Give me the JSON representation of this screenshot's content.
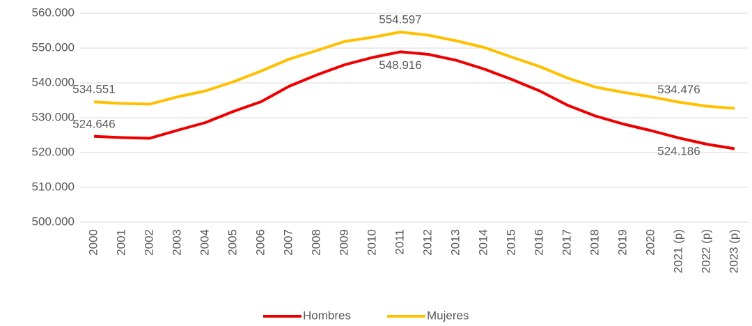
{
  "chart_data": {
    "type": "line",
    "categories": [
      "2000",
      "2001",
      "2002",
      "2003",
      "2004",
      "2005",
      "2006",
      "2007",
      "2008",
      "2009",
      "2010",
      "2011",
      "2012",
      "2013",
      "2014",
      "2015",
      "2016",
      "2017",
      "2018",
      "2019",
      "2020",
      "2021 (p)",
      "2022 (p)",
      "2023 (p)"
    ],
    "series": [
      {
        "name": "Hombres",
        "color": "#ee0000",
        "values": [
          524646,
          524300,
          524100,
          526400,
          528600,
          531800,
          534600,
          539000,
          542300,
          545200,
          547300,
          548916,
          548200,
          546500,
          544000,
          541000,
          537700,
          533600,
          530500,
          528200,
          526300,
          524186,
          522400,
          521100
        ],
        "value_labels": [
          "524.646",
          null,
          null,
          null,
          null,
          null,
          null,
          null,
          null,
          null,
          null,
          "548.916",
          null,
          null,
          null,
          null,
          null,
          null,
          null,
          null,
          null,
          "524.186",
          null,
          null
        ]
      },
      {
        "name": "Mujeres",
        "color": "#ffc000",
        "values": [
          534551,
          534100,
          533900,
          536000,
          537700,
          540300,
          543400,
          546800,
          549300,
          551900,
          553100,
          554597,
          553700,
          552100,
          550200,
          547400,
          544700,
          541400,
          538800,
          537300,
          536000,
          534476,
          533300,
          532700
        ],
        "value_labels": [
          "534.551",
          null,
          null,
          null,
          null,
          null,
          null,
          null,
          null,
          null,
          null,
          "554.597",
          null,
          null,
          null,
          null,
          null,
          null,
          null,
          null,
          null,
          "534.476",
          null,
          null
        ]
      }
    ],
    "ylim": [
      500000,
      560000
    ],
    "yticks": [
      {
        "value": 500000,
        "label": "500.000"
      },
      {
        "value": 510000,
        "label": "510.000"
      },
      {
        "value": 520000,
        "label": "520.000"
      },
      {
        "value": 530000,
        "label": "530.000"
      },
      {
        "value": 540000,
        "label": "540.000"
      },
      {
        "value": 550000,
        "label": "550.000"
      },
      {
        "value": 560000,
        "label": "560.000"
      }
    ],
    "grid": true,
    "legend": "bottom"
  }
}
